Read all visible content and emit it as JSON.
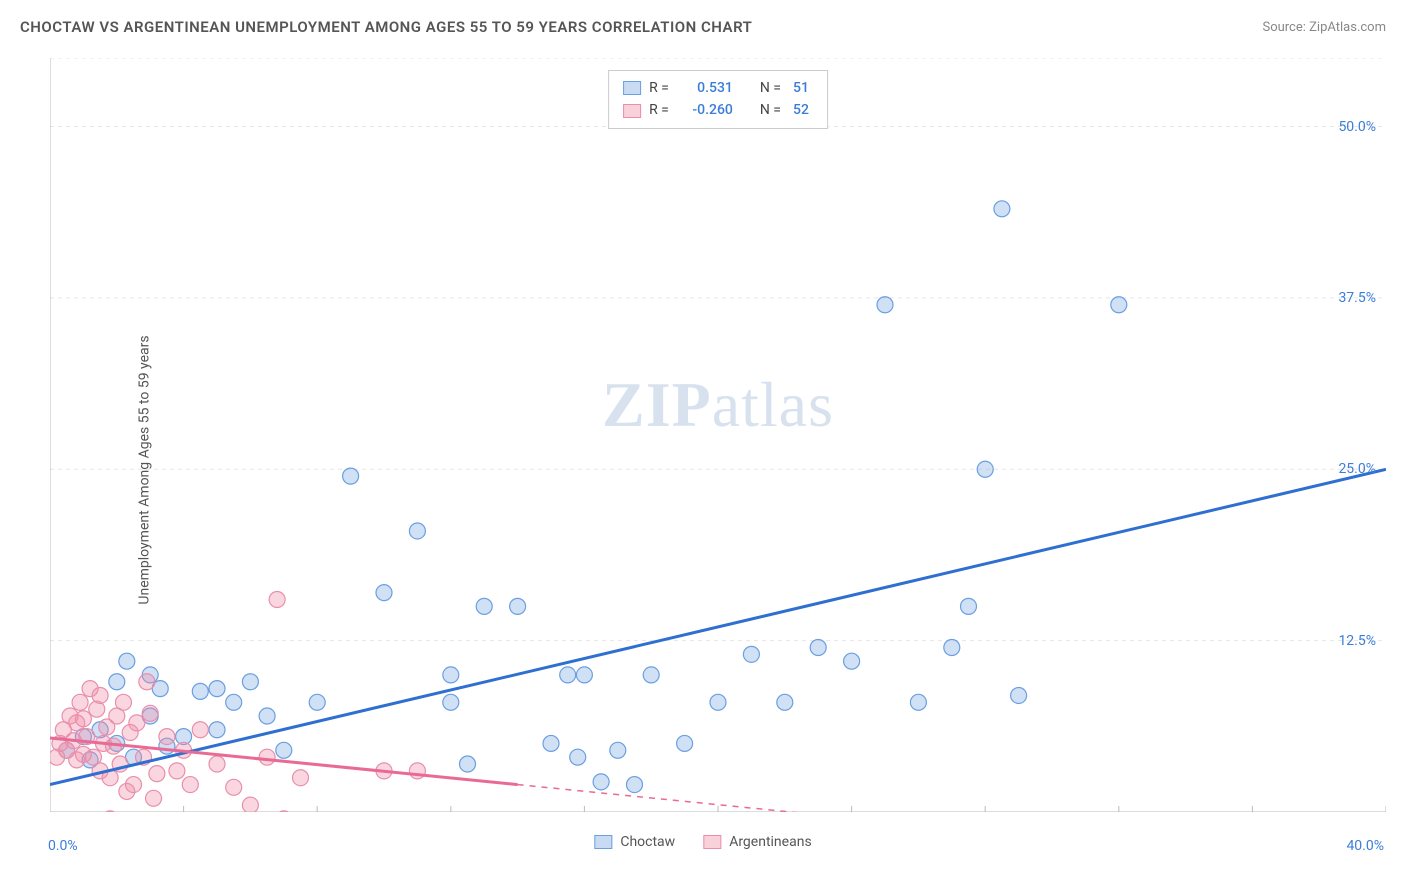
{
  "header": {
    "title": "CHOCTAW VS ARGENTINEAN UNEMPLOYMENT AMONG AGES 55 TO 59 YEARS CORRELATION CHART",
    "source": "Source: ZipAtlas.com"
  },
  "y_axis_label": "Unemployment Among Ages 55 to 59 years",
  "watermark": {
    "part1": "ZIP",
    "part2": "atlas"
  },
  "chart": {
    "type": "scatter-with-regression",
    "background_color": "#ffffff",
    "grid_color": "#e5e5e5",
    "xlim": [
      0,
      40
    ],
    "ylim": [
      0,
      55
    ],
    "x_tick_labels": {
      "left": "0.0%",
      "right": "40.0%"
    },
    "x_ticks": [
      0,
      4,
      8,
      12,
      16,
      20,
      24,
      28,
      32,
      36,
      40
    ],
    "y_ticks": [
      {
        "v": 12.5,
        "label": "12.5%"
      },
      {
        "v": 25.0,
        "label": "25.0%"
      },
      {
        "v": 37.5,
        "label": "37.5%"
      },
      {
        "v": 50.0,
        "label": "50.0%"
      }
    ],
    "series": [
      {
        "name": "Choctaw",
        "color_fill": "rgba(120,165,225,0.35)",
        "color_stroke": "#6a9fe0",
        "marker_radius": 8,
        "line_color": "#2f6fd0",
        "line_width": 3,
        "R": "0.531",
        "N": "51",
        "regression": {
          "x1": 0,
          "y1": 2.0,
          "x2": 40,
          "y2": 25.0
        },
        "points": [
          [
            0.5,
            4.5
          ],
          [
            1,
            5.5
          ],
          [
            1.2,
            3.8
          ],
          [
            1.5,
            6
          ],
          [
            2,
            5
          ],
          [
            2,
            9.5
          ],
          [
            2.3,
            11
          ],
          [
            2.5,
            4
          ],
          [
            3,
            7
          ],
          [
            3,
            10
          ],
          [
            3.3,
            9
          ],
          [
            3.5,
            4.8
          ],
          [
            4,
            5.5
          ],
          [
            4.5,
            8.8
          ],
          [
            5,
            9
          ],
          [
            5,
            6
          ],
          [
            5.5,
            8
          ],
          [
            6,
            9.5
          ],
          [
            6.5,
            7
          ],
          [
            7,
            4.5
          ],
          [
            8,
            8
          ],
          [
            9,
            24.5
          ],
          [
            10,
            16
          ],
          [
            11,
            20.5
          ],
          [
            12,
            8
          ],
          [
            12,
            10
          ],
          [
            12.5,
            3.5
          ],
          [
            13,
            15
          ],
          [
            14,
            15
          ],
          [
            15,
            5
          ],
          [
            15.5,
            10
          ],
          [
            15.8,
            4
          ],
          [
            16,
            10
          ],
          [
            16.5,
            2.2
          ],
          [
            17,
            4.5
          ],
          [
            17.5,
            2
          ],
          [
            18,
            10
          ],
          [
            19,
            5
          ],
          [
            20,
            8
          ],
          [
            21,
            11.5
          ],
          [
            22,
            8
          ],
          [
            23,
            12
          ],
          [
            24,
            11
          ],
          [
            25,
            37
          ],
          [
            26,
            8
          ],
          [
            27,
            12
          ],
          [
            27.5,
            15
          ],
          [
            28,
            25
          ],
          [
            28.5,
            44
          ],
          [
            29,
            8.5
          ],
          [
            32,
            37
          ]
        ]
      },
      {
        "name": "Argentineans",
        "color_fill": "rgba(240,140,165,0.35)",
        "color_stroke": "#e98fac",
        "marker_radius": 8,
        "line_color": "#e86a95",
        "line_width": 3,
        "R": "-0.260",
        "N": "52",
        "regression_solid": {
          "x1": 0,
          "y1": 5.4,
          "x2": 14,
          "y2": 2.0
        },
        "regression_dashed": {
          "x1": 14,
          "y1": 2.0,
          "x2": 23,
          "y2": -0.2
        },
        "points": [
          [
            0.2,
            4
          ],
          [
            0.3,
            5
          ],
          [
            0.4,
            6
          ],
          [
            0.5,
            4.5
          ],
          [
            0.6,
            7
          ],
          [
            0.7,
            5.2
          ],
          [
            0.8,
            6.5
          ],
          [
            0.8,
            3.8
          ],
          [
            0.9,
            8
          ],
          [
            1,
            4.2
          ],
          [
            1,
            6.8
          ],
          [
            1.1,
            5.5
          ],
          [
            1.2,
            9
          ],
          [
            1.3,
            4
          ],
          [
            1.4,
            7.5
          ],
          [
            1.5,
            3
          ],
          [
            1.5,
            8.5
          ],
          [
            1.6,
            5
          ],
          [
            1.7,
            6.2
          ],
          [
            1.8,
            2.5
          ],
          [
            1.8,
            -0.5
          ],
          [
            1.9,
            4.8
          ],
          [
            2,
            7
          ],
          [
            2,
            -1
          ],
          [
            2.1,
            3.5
          ],
          [
            2.2,
            8
          ],
          [
            2.3,
            1.5
          ],
          [
            2.4,
            5.8
          ],
          [
            2.5,
            2
          ],
          [
            2.6,
            6.5
          ],
          [
            2.7,
            -0.8
          ],
          [
            2.8,
            4
          ],
          [
            2.9,
            9.5
          ],
          [
            3,
            7.2
          ],
          [
            3.1,
            1
          ],
          [
            3.2,
            2.8
          ],
          [
            3.5,
            5.5
          ],
          [
            3.8,
            3
          ],
          [
            4,
            4.5
          ],
          [
            4.2,
            2
          ],
          [
            4.5,
            6
          ],
          [
            5,
            3.5
          ],
          [
            5.5,
            1.8
          ],
          [
            5.6,
            -1.2
          ],
          [
            6,
            0.5
          ],
          [
            6,
            -0.8
          ],
          [
            6.5,
            4
          ],
          [
            6.8,
            15.5
          ],
          [
            7,
            -0.5
          ],
          [
            7.5,
            2.5
          ],
          [
            10,
            3
          ],
          [
            11,
            3
          ]
        ]
      }
    ],
    "legend_top": {
      "border": "#cccccc",
      "rows": [
        {
          "swatch_fill": "rgba(120,165,225,0.4)",
          "swatch_stroke": "#6a9fe0",
          "R_lbl": "R =",
          "R": "0.531",
          "N_lbl": "N =",
          "N": "51"
        },
        {
          "swatch_fill": "rgba(240,140,165,0.4)",
          "swatch_stroke": "#e98fac",
          "R_lbl": "R =",
          "R": "-0.260",
          "N_lbl": "N =",
          "N": "52"
        }
      ]
    },
    "legend_bottom": [
      {
        "swatch_fill": "rgba(120,165,225,0.4)",
        "swatch_stroke": "#6a9fe0",
        "label": "Choctaw"
      },
      {
        "swatch_fill": "rgba(240,140,165,0.4)",
        "swatch_stroke": "#e98fac",
        "label": "Argentineans"
      }
    ]
  }
}
